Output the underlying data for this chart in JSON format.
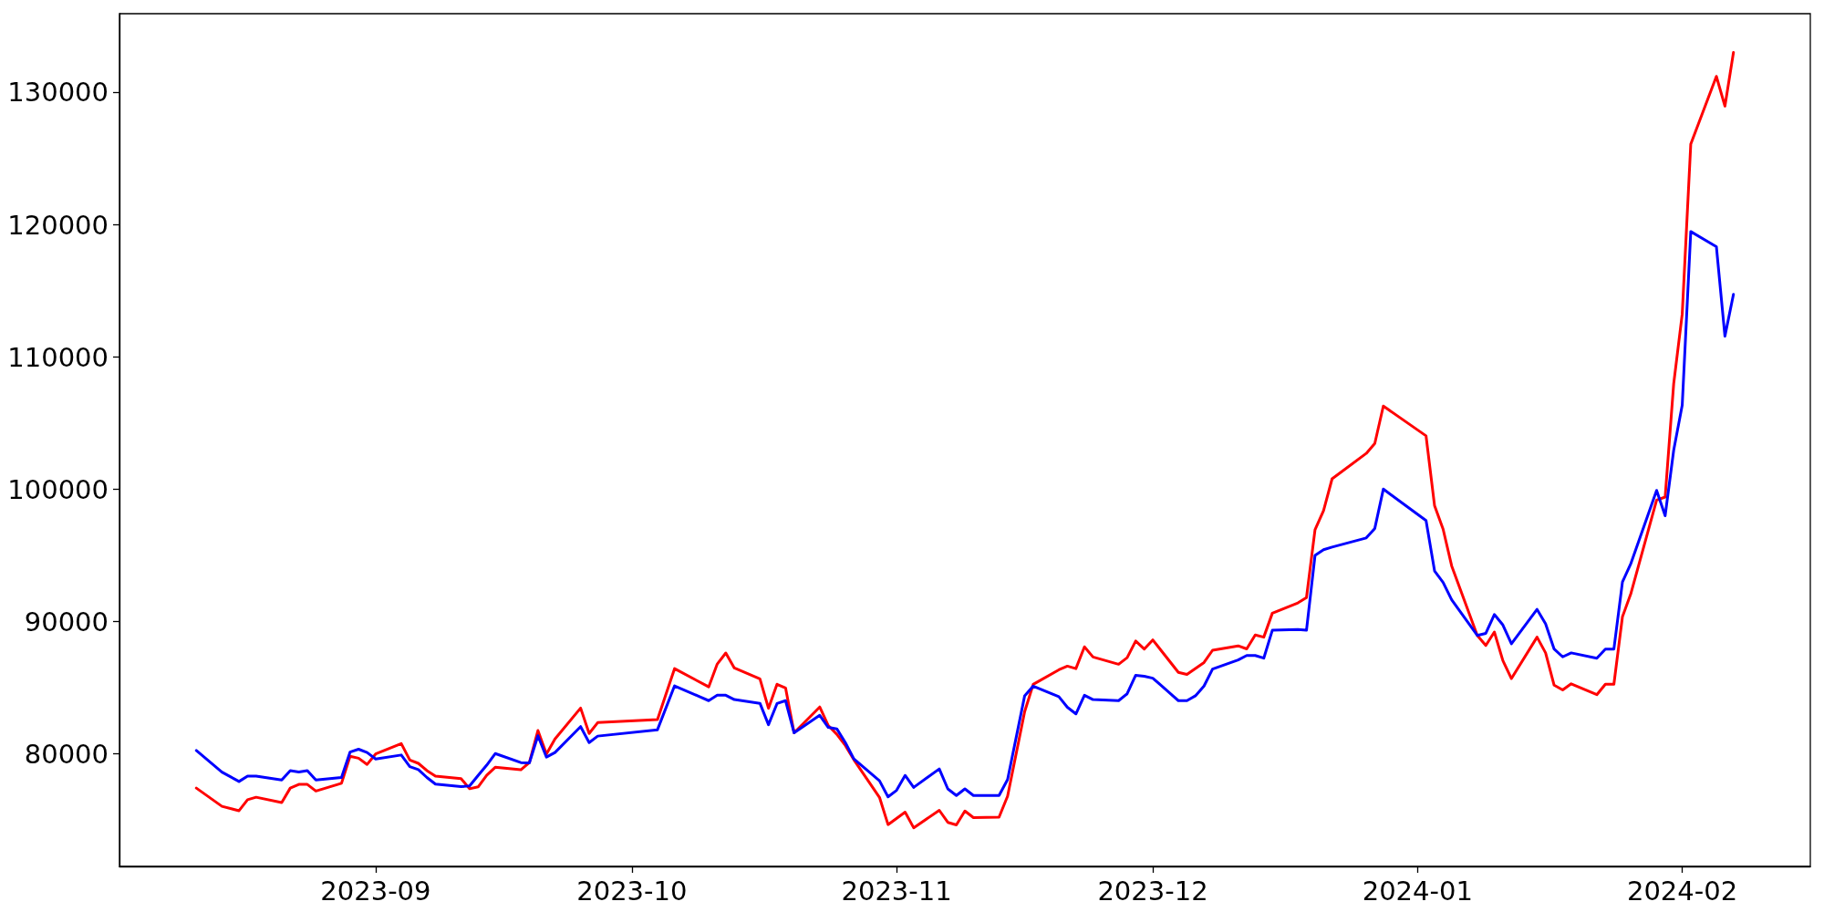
{
  "chart_data": {
    "type": "line",
    "xlim": [
      "2023-08-02",
      "2024-02-16"
    ],
    "xticks": [
      {
        "value": "2023-09-01",
        "label": "2023-09"
      },
      {
        "value": "2023-10-01",
        "label": "2023-10"
      },
      {
        "value": "2023-11-01",
        "label": "2023-11"
      },
      {
        "value": "2023-12-01",
        "label": "2023-12"
      },
      {
        "value": "2024-01-01",
        "label": "2024-01"
      },
      {
        "value": "2024-02-01",
        "label": "2024-02"
      }
    ],
    "ylim": [
      71500,
      135960
    ],
    "yticks": [
      80000,
      90000,
      100000,
      110000,
      120000,
      130000
    ],
    "grid": false,
    "marker": "none",
    "line_style": "solid",
    "series": [
      {
        "color": "#ff0000",
        "x": [
          "2023-08-11",
          "2023-08-14",
          "2023-08-16",
          "2023-08-17",
          "2023-08-18",
          "2023-08-21",
          "2023-08-22",
          "2023-08-23",
          "2023-08-24",
          "2023-08-25",
          "2023-08-28",
          "2023-08-29",
          "2023-08-30",
          "2023-08-31",
          "2023-09-01",
          "2023-09-04",
          "2023-09-05",
          "2023-09-06",
          "2023-09-07",
          "2023-09-08",
          "2023-09-11",
          "2023-09-12",
          "2023-09-13",
          "2023-09-14",
          "2023-09-15",
          "2023-09-18",
          "2023-09-19",
          "2023-09-20",
          "2023-09-21",
          "2023-09-22",
          "2023-09-25",
          "2023-09-26",
          "2023-09-27",
          "2023-10-04",
          "2023-10-06",
          "2023-10-10",
          "2023-10-11",
          "2023-10-12",
          "2023-10-13",
          "2023-10-16",
          "2023-10-17",
          "2023-10-18",
          "2023-10-19",
          "2023-10-20",
          "2023-10-23",
          "2023-10-24",
          "2023-10-25",
          "2023-10-26",
          "2023-10-27",
          "2023-10-30",
          "2023-10-31",
          "2023-11-02",
          "2023-11-03",
          "2023-11-06",
          "2023-11-07",
          "2023-11-08",
          "2023-11-09",
          "2023-11-10",
          "2023-11-13",
          "2023-11-14",
          "2023-11-16",
          "2023-11-17",
          "2023-11-20",
          "2023-11-21",
          "2023-11-22",
          "2023-11-23",
          "2023-11-24",
          "2023-11-27",
          "2023-11-28",
          "2023-11-29",
          "2023-11-30",
          "2023-12-01",
          "2023-12-04",
          "2023-12-05",
          "2023-12-07",
          "2023-12-08",
          "2023-12-11",
          "2023-12-12",
          "2023-12-13",
          "2023-12-14",
          "2023-12-15",
          "2023-12-18",
          "2023-12-19",
          "2023-12-20",
          "2023-12-21",
          "2023-12-22",
          "2023-12-26",
          "2023-12-27",
          "2023-12-28",
          "2024-01-02",
          "2024-01-03",
          "2024-01-04",
          "2024-01-05",
          "2024-01-08",
          "2024-01-09",
          "2024-01-10",
          "2024-01-11",
          "2024-01-12",
          "2024-01-15",
          "2024-01-16",
          "2024-01-17",
          "2024-01-18",
          "2024-01-19",
          "2024-01-22",
          "2024-01-23",
          "2024-01-24",
          "2024-01-25",
          "2024-01-26",
          "2024-01-29",
          "2024-01-30",
          "2024-01-31",
          "2024-02-01",
          "2024-02-02",
          "2024-02-05",
          "2024-02-06",
          "2024-02-07"
        ],
        "values": [
          77420,
          76040,
          75710,
          76540,
          76730,
          76320,
          77420,
          77700,
          77700,
          77200,
          77780,
          79820,
          79680,
          79210,
          80000,
          80780,
          79540,
          79290,
          78740,
          78330,
          78140,
          77370,
          77510,
          78380,
          78990,
          78800,
          79350,
          81770,
          80000,
          81130,
          83470,
          81550,
          82370,
          82600,
          86450,
          85070,
          86800,
          87630,
          86500,
          85680,
          83450,
          85270,
          84990,
          81600,
          83550,
          82150,
          81490,
          80640,
          79560,
          76720,
          74660,
          75600,
          74420,
          75740,
          74830,
          74640,
          75690,
          75190,
          75220,
          76810,
          83200,
          85260,
          86360,
          86640,
          86450,
          88100,
          87330,
          86780,
          87280,
          88540,
          87930,
          88620,
          86170,
          86010,
          86910,
          87840,
          88170,
          87940,
          88990,
          88830,
          90640,
          91420,
          91820,
          96950,
          98400,
          100800,
          102720,
          103470,
          106300,
          104050,
          98760,
          96990,
          94220,
          88960,
          88200,
          89220,
          87050,
          85700,
          88830,
          87640,
          85200,
          84840,
          85300,
          84480,
          85270,
          85270,
          90370,
          92150,
          99190,
          99420,
          107980,
          113250,
          126100,
          131220,
          128970,
          133030
        ]
      },
      {
        "color": "#0000ff",
        "x": [
          "2023-08-11",
          "2023-08-14",
          "2023-08-16",
          "2023-08-17",
          "2023-08-18",
          "2023-08-21",
          "2023-08-22",
          "2023-08-23",
          "2023-08-24",
          "2023-08-25",
          "2023-08-28",
          "2023-08-29",
          "2023-08-30",
          "2023-08-31",
          "2023-09-01",
          "2023-09-04",
          "2023-09-05",
          "2023-09-06",
          "2023-09-07",
          "2023-09-08",
          "2023-09-11",
          "2023-09-12",
          "2023-09-13",
          "2023-09-14",
          "2023-09-15",
          "2023-09-18",
          "2023-09-19",
          "2023-09-20",
          "2023-09-21",
          "2023-09-22",
          "2023-09-25",
          "2023-09-26",
          "2023-09-27",
          "2023-10-04",
          "2023-10-06",
          "2023-10-10",
          "2023-10-11",
          "2023-10-12",
          "2023-10-13",
          "2023-10-16",
          "2023-10-17",
          "2023-10-18",
          "2023-10-19",
          "2023-10-20",
          "2023-10-23",
          "2023-10-24",
          "2023-10-25",
          "2023-10-26",
          "2023-10-27",
          "2023-10-30",
          "2023-10-31",
          "2023-11-01",
          "2023-11-02",
          "2023-11-03",
          "2023-11-06",
          "2023-11-07",
          "2023-11-08",
          "2023-11-09",
          "2023-11-10",
          "2023-11-13",
          "2023-11-14",
          "2023-11-16",
          "2023-11-17",
          "2023-11-20",
          "2023-11-21",
          "2023-11-22",
          "2023-11-23",
          "2023-11-24",
          "2023-11-27",
          "2023-11-28",
          "2023-11-29",
          "2023-11-30",
          "2023-12-01",
          "2023-12-04",
          "2023-12-05",
          "2023-12-06",
          "2023-12-07",
          "2023-12-08",
          "2023-12-11",
          "2023-12-12",
          "2023-12-13",
          "2023-12-14",
          "2023-12-15",
          "2023-12-18",
          "2023-12-19",
          "2023-12-20",
          "2023-12-21",
          "2023-12-22",
          "2023-12-26",
          "2023-12-27",
          "2023-12-28",
          "2024-01-02",
          "2024-01-03",
          "2024-01-04",
          "2024-01-05",
          "2024-01-08",
          "2024-01-09",
          "2024-01-10",
          "2024-01-11",
          "2024-01-12",
          "2024-01-15",
          "2024-01-16",
          "2024-01-17",
          "2024-01-18",
          "2024-01-19",
          "2024-01-22",
          "2024-01-23",
          "2024-01-24",
          "2024-01-25",
          "2024-01-26",
          "2024-01-29",
          "2024-01-30",
          "2024-01-31",
          "2024-02-01",
          "2024-02-02",
          "2024-02-05",
          "2024-02-06",
          "2024-02-07"
        ],
        "values": [
          80260,
          78630,
          77920,
          78330,
          78330,
          78030,
          78740,
          78630,
          78740,
          78030,
          78220,
          80140,
          80360,
          80110,
          79620,
          79920,
          79040,
          78820,
          78220,
          77720,
          77530,
          77580,
          78380,
          79150,
          80030,
          79350,
          79320,
          81380,
          79760,
          80110,
          82070,
          80860,
          81350,
          81830,
          85150,
          84030,
          84440,
          84440,
          84110,
          83830,
          82210,
          83810,
          84030,
          81600,
          82920,
          82010,
          81900,
          80860,
          79620,
          77970,
          76760,
          77250,
          78380,
          77470,
          78870,
          77360,
          76860,
          77360,
          76860,
          76860,
          78070,
          84400,
          85130,
          84330,
          83530,
          83030,
          84440,
          84110,
          84030,
          84550,
          85950,
          85870,
          85730,
          84030,
          84030,
          84400,
          85130,
          86420,
          87110,
          87440,
          87440,
          87240,
          89350,
          89410,
          89350,
          95010,
          95440,
          95640,
          96330,
          97050,
          100020,
          97650,
          93830,
          92970,
          91660,
          88960,
          89120,
          90540,
          89750,
          88330,
          90930,
          89840,
          87930,
          87340,
          87640,
          87240,
          87930,
          87930,
          93000,
          94420,
          99920,
          98010,
          102950,
          106370,
          119490,
          118350,
          111580,
          114740
        ]
      }
    ]
  }
}
